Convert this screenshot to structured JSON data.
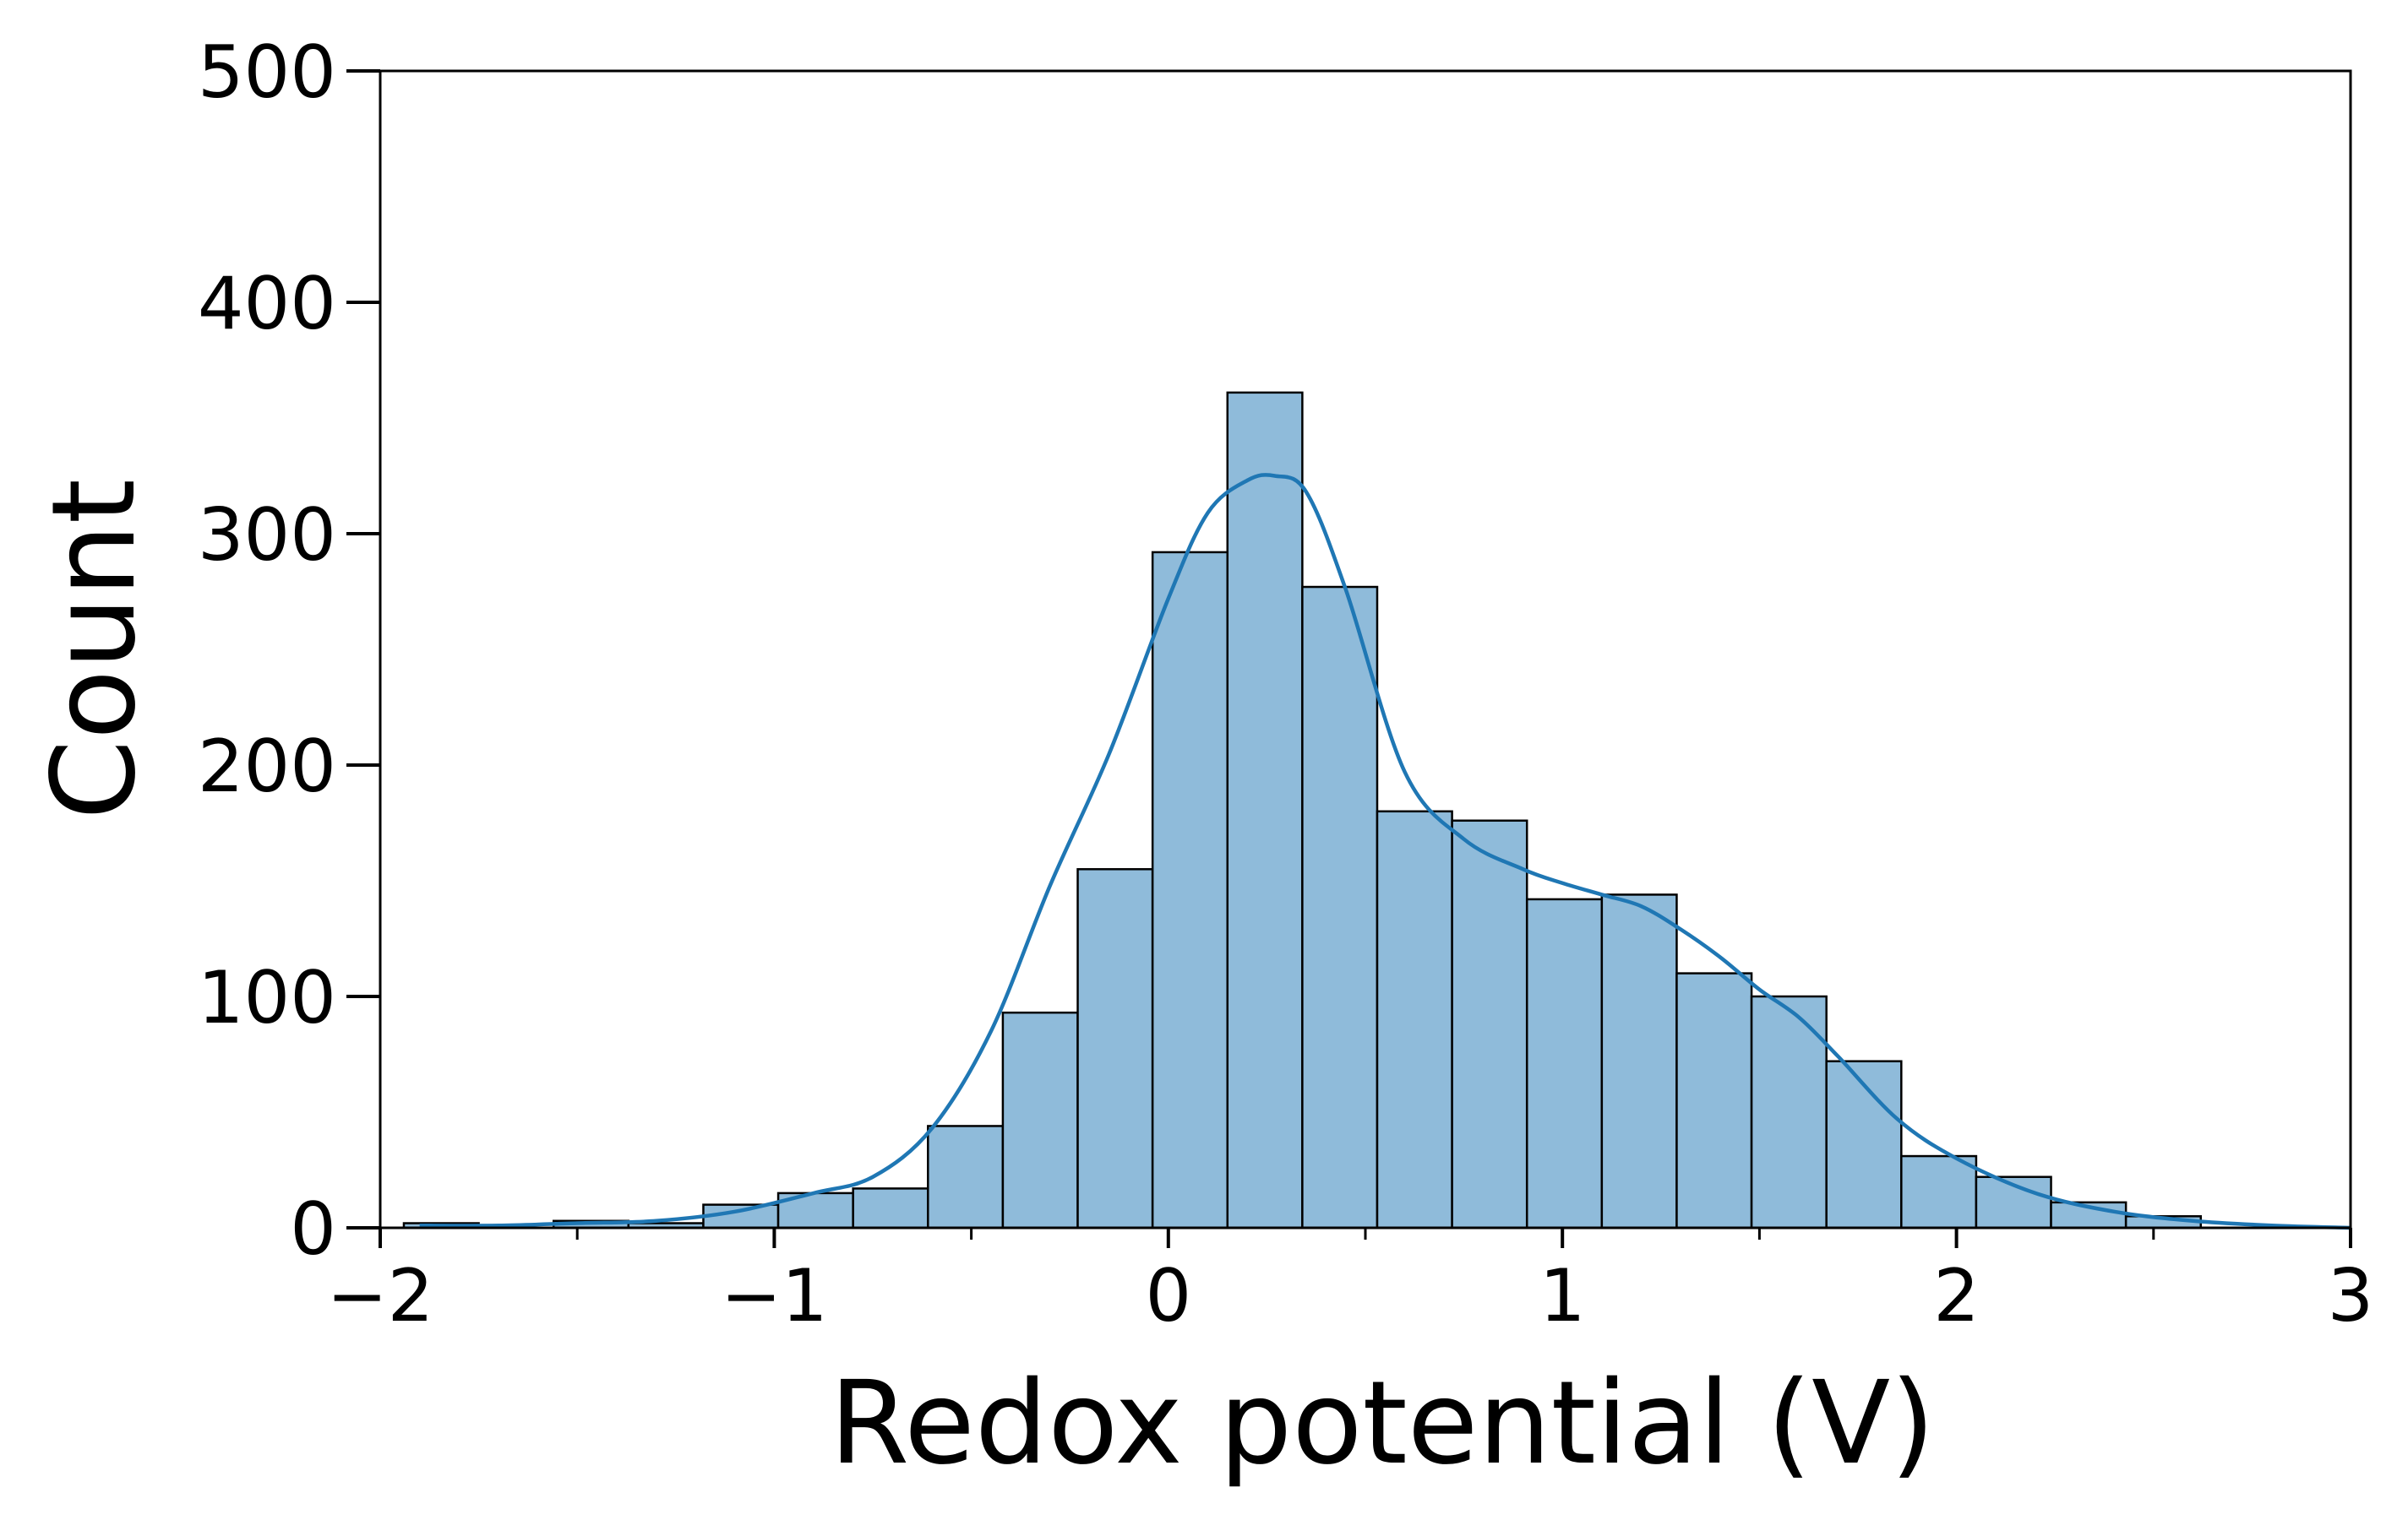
{
  "chart_data": {
    "type": "bar",
    "title": "",
    "xlabel": "Redox potential (V)",
    "ylabel": "Count",
    "xlim": [
      -2,
      3
    ],
    "ylim": [
      0,
      500
    ],
    "x_ticks": [
      "−2",
      "−1",
      "0",
      "1",
      "2",
      "3"
    ],
    "y_ticks": [
      "0",
      "100",
      "200",
      "300",
      "400",
      "500"
    ],
    "x_tick_values": [
      -2,
      -1,
      0,
      1,
      2,
      3
    ],
    "y_tick_values": [
      0,
      100,
      200,
      300,
      400,
      500
    ],
    "x_minor_ticks": [
      -1.5,
      -0.5,
      0.5,
      1.5,
      2.5
    ],
    "grid": false,
    "legend": "none",
    "bins": [
      {
        "x0": -1.94,
        "x1": -1.75,
        "count": 2
      },
      {
        "x0": -1.75,
        "x1": -1.56,
        "count": 0
      },
      {
        "x0": -1.56,
        "x1": -1.37,
        "count": 3
      },
      {
        "x0": -1.37,
        "x1": -1.18,
        "count": 2
      },
      {
        "x0": -1.18,
        "x1": -0.99,
        "count": 10
      },
      {
        "x0": -0.99,
        "x1": -0.8,
        "count": 15
      },
      {
        "x0": -0.8,
        "x1": -0.61,
        "count": 17
      },
      {
        "x0": -0.61,
        "x1": -0.42,
        "count": 44
      },
      {
        "x0": -0.42,
        "x1": -0.23,
        "count": 93
      },
      {
        "x0": -0.23,
        "x1": -0.04,
        "count": 155
      },
      {
        "x0": -0.04,
        "x1": 0.15,
        "count": 292
      },
      {
        "x0": 0.15,
        "x1": 0.34,
        "count": 361
      },
      {
        "x0": 0.34,
        "x1": 0.53,
        "count": 277
      },
      {
        "x0": 0.53,
        "x1": 0.72,
        "count": 180
      },
      {
        "x0": 0.72,
        "x1": 0.91,
        "count": 176
      },
      {
        "x0": 0.91,
        "x1": 1.1,
        "count": 142
      },
      {
        "x0": 1.1,
        "x1": 1.29,
        "count": 144
      },
      {
        "x0": 1.29,
        "x1": 1.48,
        "count": 110
      },
      {
        "x0": 1.48,
        "x1": 1.67,
        "count": 100
      },
      {
        "x0": 1.67,
        "x1": 1.86,
        "count": 72
      },
      {
        "x0": 1.86,
        "x1": 2.05,
        "count": 31
      },
      {
        "x0": 2.05,
        "x1": 2.24,
        "count": 22
      },
      {
        "x0": 2.24,
        "x1": 2.43,
        "count": 11
      },
      {
        "x0": 2.43,
        "x1": 2.62,
        "count": 5
      }
    ],
    "kde": {
      "x": [
        -1.9,
        -1.7,
        -1.5,
        -1.3,
        -1.1,
        -0.9,
        -0.75,
        -0.6,
        -0.45,
        -0.3,
        -0.15,
        0.0,
        0.1,
        0.2,
        0.27,
        0.35,
        0.45,
        0.6,
        0.75,
        0.9,
        1.0,
        1.1,
        1.2,
        1.3,
        1.4,
        1.5,
        1.6,
        1.7,
        1.85,
        2.0,
        2.2,
        2.4,
        2.6,
        2.8,
        3.0
      ],
      "y": [
        1,
        1,
        2,
        3,
        7,
        15,
        22,
        43,
        85,
        148,
        205,
        272,
        309,
        323,
        325,
        318,
        276,
        197,
        168,
        155,
        149,
        144,
        139,
        129,
        117,
        103,
        91,
        74,
        47,
        30,
        15,
        7,
        3,
        1,
        0
      ]
    },
    "colors": {
      "bar_fill": "#8fbbda",
      "bar_edge": "#000000",
      "kde_line": "#1f77b4"
    }
  }
}
